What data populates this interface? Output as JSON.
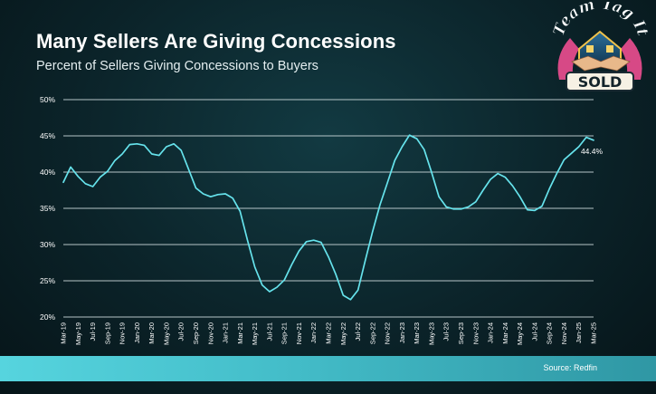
{
  "title": "Many Sellers Are Giving Concessions",
  "subtitle": "Percent of Sellers Giving Concessions to Buyers",
  "source": "Source: Redfin",
  "logo": {
    "line1": "Team Tag It",
    "line2": "SOLD"
  },
  "colors": {
    "line": "#66e3ec",
    "grid": "#c9d6d8",
    "footer": "#4cc7d2",
    "accent": "#e0508c"
  },
  "chart_data": {
    "type": "line",
    "title": "Percent of Sellers Giving Concessions to Buyers",
    "ylim": [
      20,
      50
    ],
    "yticks": [
      20,
      25,
      30,
      35,
      40,
      45,
      50
    ],
    "ytick_labels": [
      "20%",
      "25%",
      "30%",
      "35%",
      "40%",
      "45%",
      "50%"
    ],
    "grid": true,
    "categories": [
      "Mar-19",
      "Apr-19",
      "May-19",
      "Jun-19",
      "Jul-19",
      "Aug-19",
      "Sep-19",
      "Oct-19",
      "Nov-19",
      "Dec-19",
      "Jan-20",
      "Feb-20",
      "Mar-20",
      "Apr-20",
      "May-20",
      "Jun-20",
      "Jul-20",
      "Aug-20",
      "Sep-20",
      "Oct-20",
      "Nov-20",
      "Dec-20",
      "Jan-21",
      "Feb-21",
      "Mar-21",
      "Apr-21",
      "May-21",
      "Jun-21",
      "Jul-21",
      "Aug-21",
      "Sep-21",
      "Oct-21",
      "Nov-21",
      "Dec-21",
      "Jan-22",
      "Feb-22",
      "Mar-22",
      "Apr-22",
      "May-22",
      "Jun-22",
      "Jul-22",
      "Aug-22",
      "Sep-22",
      "Oct-22",
      "Nov-22",
      "Dec-22",
      "Jan-23",
      "Feb-23",
      "Mar-23",
      "Apr-23",
      "May-23",
      "Jun-23",
      "Jul-23",
      "Aug-23",
      "Sep-23",
      "Oct-23",
      "Nov-23",
      "Dec-23",
      "Jan-24",
      "Feb-24",
      "Mar-24",
      "Apr-24",
      "May-24",
      "Jun-24",
      "Jul-24",
      "Aug-24",
      "Sep-24",
      "Oct-24",
      "Nov-24",
      "Dec-24",
      "Jan-25",
      "Feb-25",
      "Mar-25"
    ],
    "tick_labels": [
      "Mar-19",
      "May-19",
      "Jul-19",
      "Sep-19",
      "Nov-19",
      "Jan-20",
      "Mar-20",
      "May-20",
      "Jul-20",
      "Sep-20",
      "Nov-20",
      "Jan-21",
      "Mar-21",
      "May-21",
      "Jul-21",
      "Sep-21",
      "Nov-21",
      "Jan-22",
      "Mar-22",
      "May-22",
      "Jul-22",
      "Sep-22",
      "Nov-22",
      "Jan-23",
      "Mar-23",
      "May-23",
      "Jul-23",
      "Sep-23",
      "Nov-23",
      "Jan-24",
      "Mar-24",
      "May-24",
      "Jul-24",
      "Sep-24",
      "Nov-24",
      "Jan-25",
      "Mar-25"
    ],
    "series": [
      {
        "values": [
          38.6,
          40.7,
          39.4,
          38.4,
          38.0,
          39.3,
          40.1,
          41.6,
          42.5,
          43.8,
          43.9,
          43.7,
          42.5,
          42.3,
          43.5,
          43.9,
          43.0,
          40.4,
          37.8,
          37.0,
          36.6,
          36.9,
          37.0,
          36.4,
          34.6,
          30.6,
          26.9,
          24.4,
          23.5,
          24.1,
          25.1,
          27.2,
          29.1,
          30.4,
          30.6,
          30.3,
          28.3,
          25.9,
          23.0,
          22.4,
          23.7,
          27.8,
          31.8,
          35.5,
          38.5,
          41.6,
          43.5,
          45.1,
          44.6,
          43.1,
          40.0,
          36.6,
          35.2,
          34.9,
          34.9,
          35.2,
          35.9,
          37.5,
          39.0,
          39.8,
          39.3,
          38.1,
          36.6,
          34.8,
          34.7,
          35.3,
          37.7,
          39.8,
          41.7,
          42.6,
          43.5,
          44.8,
          44.4
        ]
      }
    ],
    "annotations": [
      {
        "x": "Mar-25",
        "y": 44.4,
        "text": "44.4%"
      }
    ]
  }
}
